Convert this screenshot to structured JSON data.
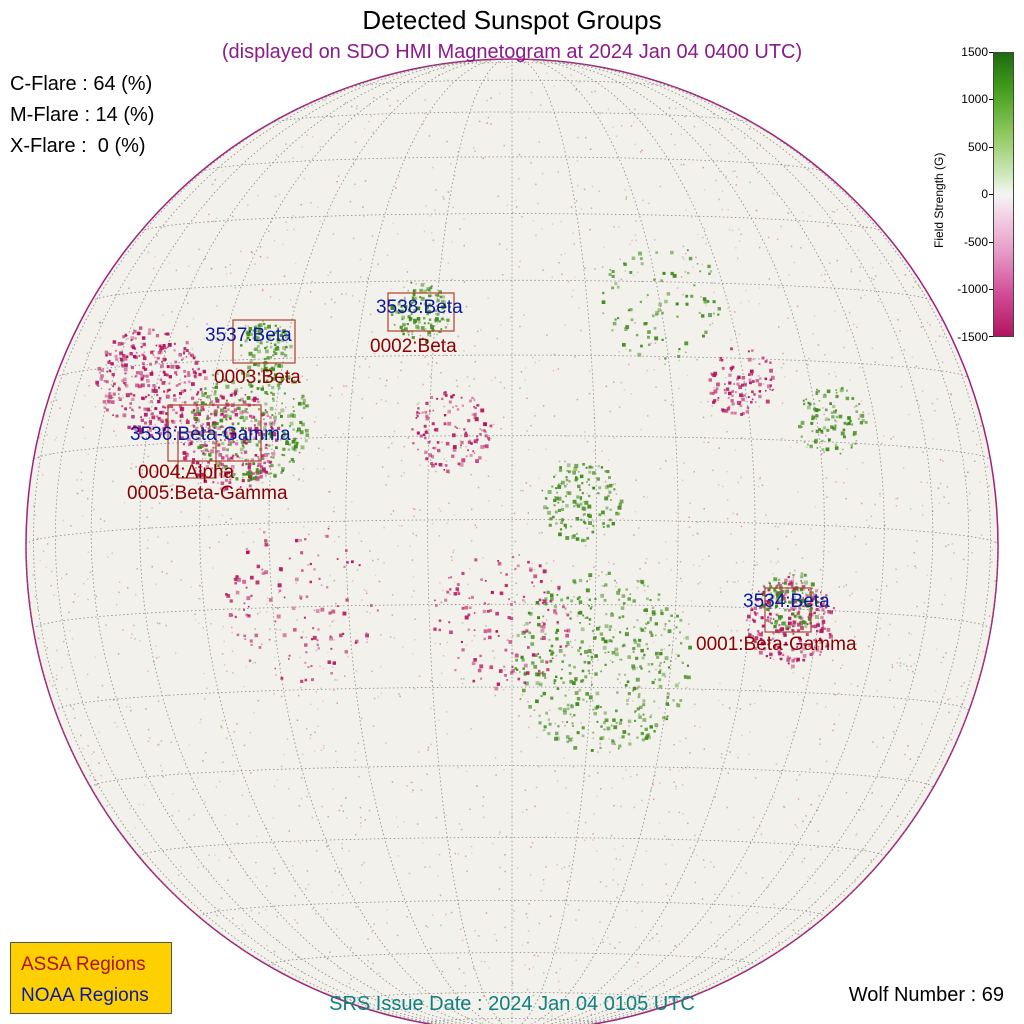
{
  "title": "Detected Sunspot Groups",
  "subtitle": "(displayed on SDO HMI Magnetogram at 2024 Jan 04 0400 UTC)",
  "flare_probabilities": [
    {
      "label": "C-Flare : 64 (%)",
      "value": 64
    },
    {
      "label": "M-Flare : 14 (%)",
      "value": 14
    },
    {
      "label": "X-Flare :  0 (%)",
      "value": 0
    }
  ],
  "colorbar": {
    "label": "Field Strength (G)",
    "ticks": [
      "1500",
      "1000",
      "500",
      "0",
      "-500",
      "-1000",
      "-1500"
    ],
    "positive_color": "#1d6b10",
    "negative_color": "#b3145f"
  },
  "noaa_regions": [
    {
      "label": "3538:Beta"
    },
    {
      "label": "3537:Beta"
    },
    {
      "label": "3536:Beta-Gamma"
    },
    {
      "label": "3534:Beta"
    }
  ],
  "assa_regions": [
    {
      "label": "0002:Beta"
    },
    {
      "label": "0003:Beta"
    },
    {
      "label": "0004:Alpha"
    },
    {
      "label": "0005:Beta-Gamma"
    },
    {
      "label": "0001:Beta-Gamma"
    }
  ],
  "legend": {
    "assa": "ASSA Regions",
    "noaa": "NOAA Regions",
    "assa_color": "#b01010",
    "noaa_color": "#0a1aa0",
    "background": "#ffd000"
  },
  "srs_issue": "SRS Issue Date : 2024 Jan 04 0105 UTC",
  "wolf_number": "Wolf Number : 69"
}
